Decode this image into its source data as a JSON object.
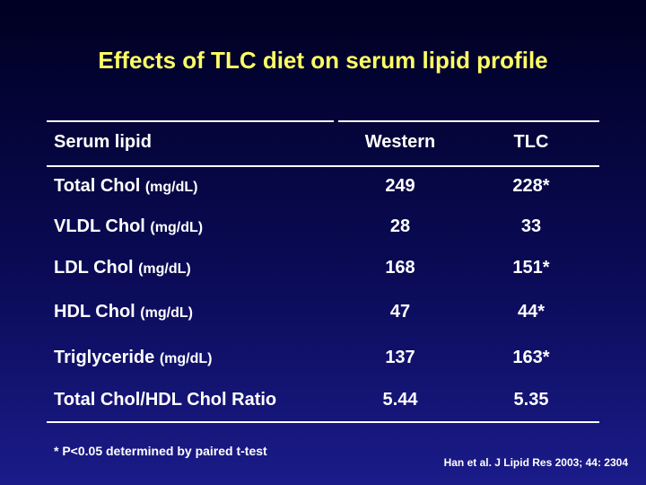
{
  "title": "Effects of TLC diet on serum lipid profile",
  "table": {
    "header": [
      "Serum lipid",
      "Western",
      "TLC"
    ],
    "rows": [
      {
        "label": "Total Chol",
        "unit": "(mg/dL)",
        "western": "249",
        "tlc": "228*"
      },
      {
        "label": "VLDL Chol",
        "unit": "(mg/dL)",
        "western": "28",
        "tlc": "33"
      },
      {
        "label": "LDL Chol",
        "unit": "(mg/dL)",
        "western": "168",
        "tlc": "151*"
      },
      {
        "label": "HDL Chol",
        "unit": "(mg/dL)",
        "western": "47",
        "tlc": "44*"
      },
      {
        "label": "Triglyceride",
        "unit": "(mg/dL)",
        "western": "137",
        "tlc": "163*"
      },
      {
        "label": "Total Chol/HDL Chol Ratio",
        "western": "5.44",
        "tlc": "5.35"
      }
    ]
  },
  "footnote": "* P<0.05 determined by paired t-test",
  "citation": "Han et al. J Lipid Res 2003; 44: 2304"
}
